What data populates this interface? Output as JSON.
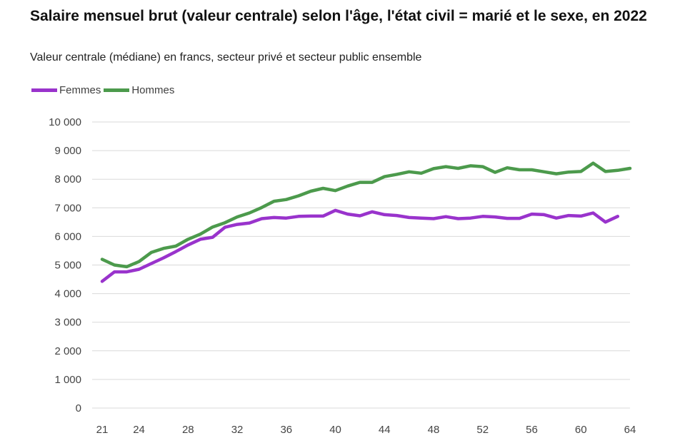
{
  "header": {
    "title": "Salaire mensuel brut (valeur centrale) selon l'âge, l'état civil = marié et le sexe, en 2022",
    "subtitle": "Valeur centrale (médiane) en francs, secteur privé et secteur public ensemble"
  },
  "colors": {
    "femmes": "#9933CC",
    "hommes": "#4C9A4C",
    "grid": "#d9d9d9"
  },
  "chart_data": {
    "type": "line",
    "title": "Salaire mensuel brut (valeur centrale) selon l'âge, l'état civil = marié et le sexe, en 2022",
    "subtitle": "Valeur centrale (médiane) en francs, secteur privé et secteur public ensemble",
    "xlabel": "",
    "ylabel": "",
    "xlim": [
      21,
      64
    ],
    "ylim": [
      0,
      10000
    ],
    "grid": true,
    "legend": "top-left",
    "x_ticks": [
      "21",
      "24",
      "28",
      "32",
      "36",
      "40",
      "44",
      "48",
      "52",
      "56",
      "60",
      "64"
    ],
    "y_ticks": [
      "0",
      "1 000",
      "2 000",
      "3 000",
      "4 000",
      "5 000",
      "6 000",
      "7 000",
      "8 000",
      "9 000",
      "10 000"
    ],
    "x": [
      21,
      22,
      23,
      24,
      25,
      26,
      27,
      28,
      29,
      30,
      31,
      32,
      33,
      34,
      35,
      36,
      37,
      38,
      39,
      40,
      41,
      42,
      43,
      44,
      45,
      46,
      47,
      48,
      49,
      50,
      51,
      52,
      53,
      54,
      55,
      56,
      57,
      58,
      59,
      60,
      61,
      62,
      63,
      64
    ],
    "series": [
      {
        "name": "Femmes",
        "color": "#9933CC",
        "values": [
          4430,
          4760,
          4760,
          4850,
          5050,
          5250,
          5470,
          5700,
          5900,
          5970,
          6320,
          6420,
          6470,
          6620,
          6660,
          6640,
          6700,
          6710,
          6710,
          6910,
          6780,
          6720,
          6860,
          6760,
          6730,
          6660,
          6640,
          6620,
          6690,
          6620,
          6640,
          6700,
          6680,
          6630,
          6630,
          6780,
          6760,
          6640,
          6730,
          6710,
          6820,
          6500,
          6700,
          null
        ]
      },
      {
        "name": "Hommes",
        "color": "#4C9A4C",
        "values": [
          5200,
          5000,
          4940,
          5120,
          5440,
          5580,
          5660,
          5900,
          6080,
          6330,
          6480,
          6680,
          6820,
          7010,
          7230,
          7290,
          7420,
          7580,
          7680,
          7600,
          7760,
          7890,
          7890,
          8090,
          8170,
          8260,
          8210,
          8370,
          8440,
          8380,
          8470,
          8440,
          8240,
          8400,
          8330,
          8330,
          8260,
          8190,
          8250,
          8270,
          8560,
          8270,
          8310,
          8380
        ]
      }
    ]
  }
}
